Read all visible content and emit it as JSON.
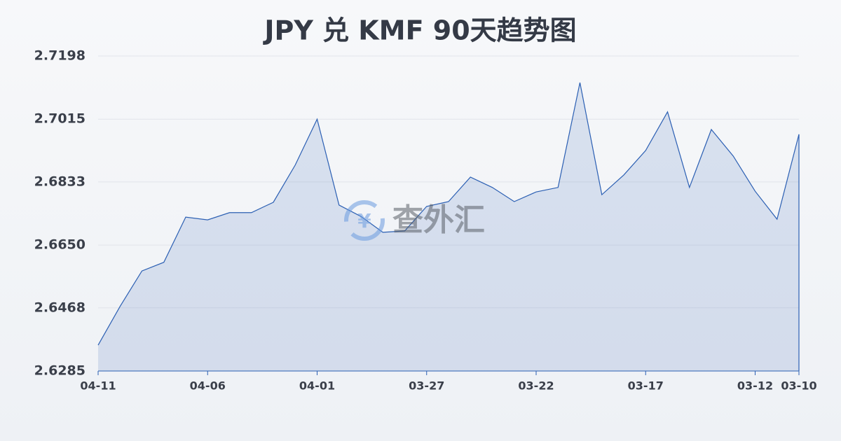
{
  "chart_data": {
    "type": "area",
    "title": "JPY 兑 KMF 90天趋势图",
    "watermark": "查外汇",
    "categories": [
      "04-11",
      null,
      null,
      null,
      null,
      "04-06",
      null,
      null,
      null,
      null,
      "04-01",
      null,
      null,
      null,
      null,
      "03-27",
      null,
      null,
      null,
      null,
      "03-22",
      null,
      null,
      null,
      null,
      "03-17",
      null,
      null,
      null,
      null,
      "03-12",
      null,
      "03-10"
    ],
    "values": [
      2.636,
      2.6472,
      2.6575,
      2.66,
      2.6731,
      2.6723,
      2.6744,
      2.6744,
      2.6774,
      2.6882,
      2.7015,
      2.6766,
      2.6733,
      2.6687,
      2.6691,
      2.6762,
      2.6776,
      2.6847,
      2.6817,
      2.6776,
      2.6804,
      2.6817,
      2.7121,
      2.6796,
      2.6853,
      2.6924,
      2.7036,
      2.6817,
      2.6985,
      2.6908,
      2.6806,
      2.6725,
      2.6971
    ],
    "color": "#2b5fb3",
    "ylim": [
      2.6285,
      2.7198
    ],
    "yticks": [
      2.6285,
      2.6468,
      {
        "value": 2.665,
        "label": "2.6650"
      },
      2.6833,
      2.7015,
      2.7198
    ],
    "grid": true
  }
}
